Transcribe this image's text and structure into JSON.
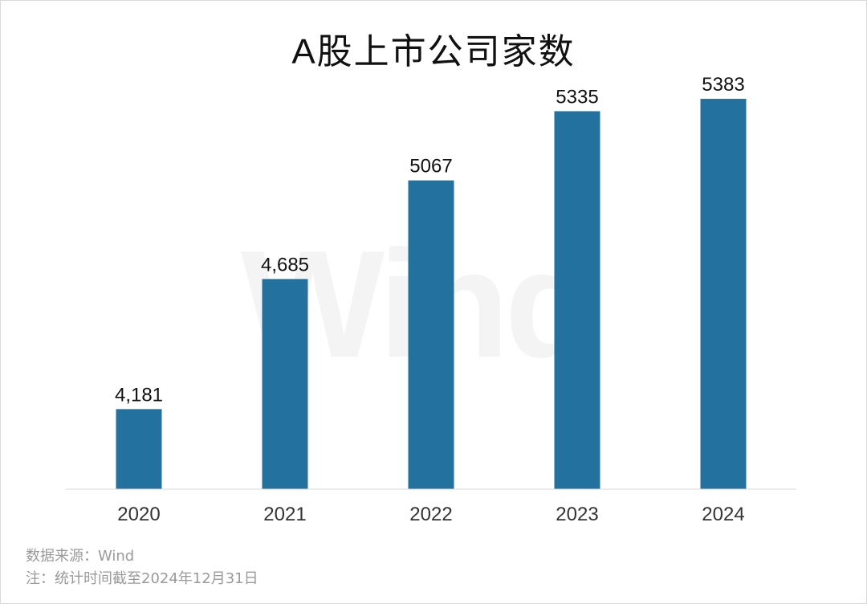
{
  "chart_data": {
    "type": "bar",
    "title": "A股上市公司家数",
    "categories": [
      "2020",
      "2021",
      "2022",
      "2023",
      "2024"
    ],
    "values": [
      4181,
      4685,
      5067,
      5335,
      5383
    ],
    "value_labels": [
      "4,181",
      "4,685",
      "5067",
      "5335",
      "5383"
    ],
    "bar_color": "#22719e",
    "grid": false,
    "legend": "none"
  },
  "watermark": "Wind",
  "footer": {
    "source": "数据来源：Wind",
    "note": "注：统计时间截至2024年12月31日"
  }
}
